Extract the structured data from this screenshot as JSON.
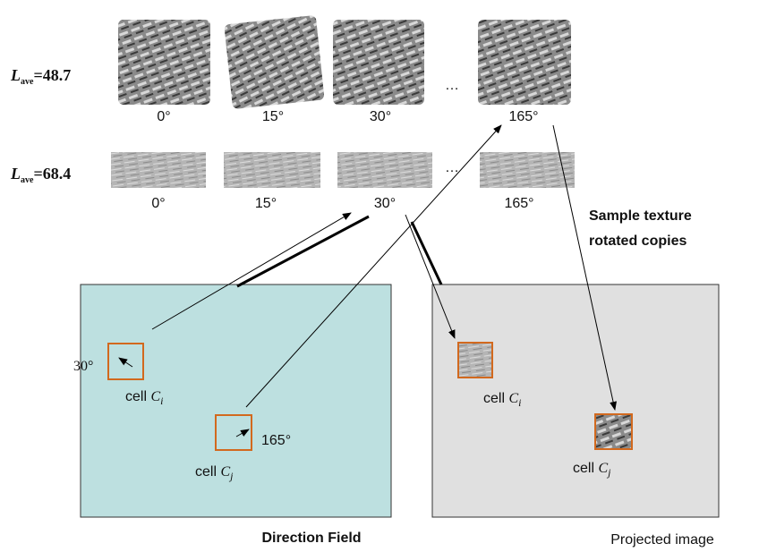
{
  "rows": [
    {
      "label_main": "L",
      "label_sub": "ave",
      "label_value": "=48.7",
      "angles": [
        "0°",
        "15°",
        "30°",
        "165°"
      ],
      "ellipsis": "…"
    },
    {
      "label_main": "L",
      "label_sub": "ave",
      "label_value": "=68.4",
      "angles": [
        "0°",
        "15°",
        "30°",
        "165°"
      ],
      "ellipsis": "…"
    }
  ],
  "side_label": {
    "line1": "Sample texture",
    "line2": "rotated copies"
  },
  "direction_field": {
    "title": "Direction Field",
    "cells": [
      {
        "word": "cell",
        "symbol": "C",
        "sub": "i",
        "angle": "30°"
      },
      {
        "word": "cell",
        "symbol": "C",
        "sub": "j",
        "angle": "165°"
      }
    ]
  },
  "projected_image": {
    "title": "Projected image",
    "cells": [
      {
        "word": "cell",
        "symbol": "C",
        "sub": "i"
      },
      {
        "word": "cell",
        "symbol": "C",
        "sub": "j"
      }
    ]
  }
}
